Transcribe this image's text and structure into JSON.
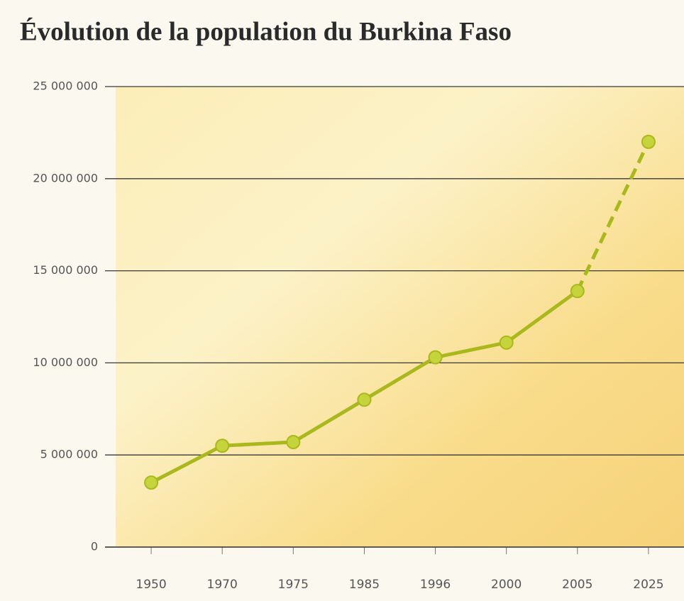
{
  "chart_data": {
    "type": "line",
    "title": "Évolution de la population du Burkina Faso",
    "categories": [
      "1950",
      "1970",
      "1975",
      "1985",
      "1996",
      "2000",
      "2005",
      "2025"
    ],
    "series": [
      {
        "color": "#a9b91c",
        "values": [
          3500000,
          5500000,
          5700000,
          8000000,
          10300000,
          11100000,
          13900000,
          22000000
        ]
      }
    ],
    "dashed_segments": [
      6
    ],
    "ylim": [
      0,
      25000000
    ],
    "yticks": [
      0,
      {
        "value": 5000000,
        "label": "5 000 000"
      },
      {
        "value": 10000000,
        "label": "10 000 000"
      },
      {
        "value": 15000000,
        "label": "15 000 000"
      },
      {
        "value": 20000000,
        "label": "20 000 000"
      },
      {
        "value": 25000000,
        "label": "25 000 000"
      }
    ],
    "grid": true
  }
}
